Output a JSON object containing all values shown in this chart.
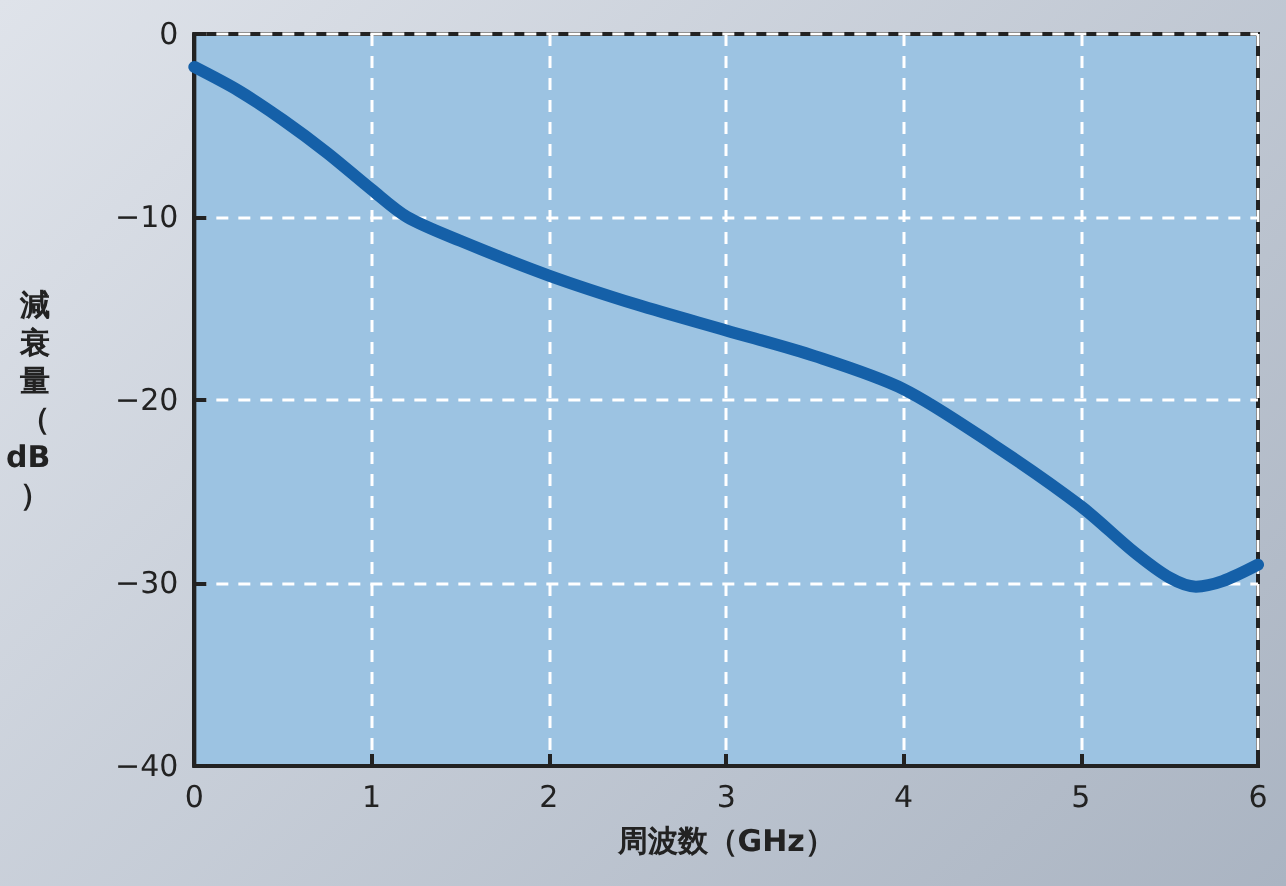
{
  "chart_data": {
    "type": "line",
    "xlabel": "周波数（GHz）",
    "ylabel": "減衰量（dB）",
    "x": [
      0,
      0.25,
      0.5,
      0.75,
      1,
      1.2,
      1.5,
      2,
      2.5,
      3,
      3.5,
      4,
      4.5,
      5,
      5.3,
      5.5,
      5.65,
      5.8,
      6
    ],
    "series": [
      {
        "color": "#1560a8",
        "values": [
          -1.8,
          -3.1,
          -4.7,
          -6.5,
          -8.5,
          -10,
          -11.3,
          -13.2,
          -14.8,
          -16.2,
          -17.6,
          -19.4,
          -22.4,
          -25.8,
          -28.3,
          -29.7,
          -30.2,
          -29.9,
          -29
        ]
      }
    ],
    "xlim": [
      0,
      6
    ],
    "xticks": [
      0,
      1,
      2,
      3,
      4,
      5,
      6
    ],
    "ylim": [
      -40,
      0
    ],
    "yticks": [
      -40,
      -30,
      -20,
      -10,
      0
    ],
    "grid": true,
    "marker": "none",
    "line_style": "solid"
  }
}
